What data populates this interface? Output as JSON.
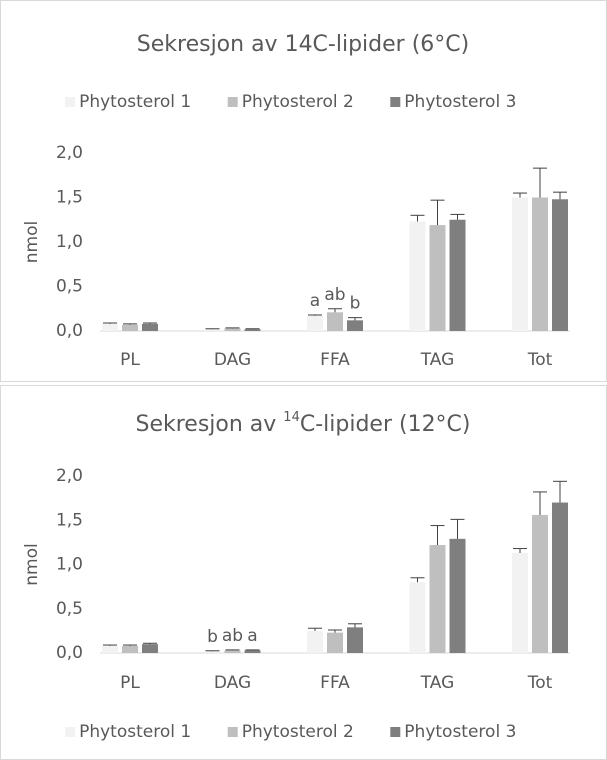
{
  "chart_data": [
    {
      "type": "bar",
      "title": [
        "Sekresjon av 14C-lipider (6°C)"
      ],
      "y_label": "nmol",
      "legend": "top",
      "grid": false,
      "categories": [
        "PL",
        "DAG",
        "FFA",
        "TAG",
        "Tot"
      ],
      "series": [
        {
          "name": "Phytosterol 1",
          "color": "#f2f2f2",
          "values": [
            0.08,
            0.02,
            0.17,
            1.23,
            1.5
          ],
          "errors": [
            0.01,
            0.005,
            0.01,
            0.07,
            0.05
          ]
        },
        {
          "name": "Phytosterol 2",
          "color": "#bfbfbf",
          "values": [
            0.07,
            0.03,
            0.21,
            1.19,
            1.5
          ],
          "errors": [
            0.01,
            0.005,
            0.04,
            0.28,
            0.33
          ]
        },
        {
          "name": "Phytosterol 3",
          "color": "#7f7f7f",
          "values": [
            0.08,
            0.02,
            0.12,
            1.25,
            1.48
          ],
          "errors": [
            0.01,
            0.005,
            0.03,
            0.06,
            0.08
          ]
        }
      ],
      "ylim": [
        0,
        2
      ],
      "yticks": [
        {
          "value": 0,
          "label": "0,0"
        },
        {
          "value": 0.5,
          "label": "0,5"
        },
        {
          "value": 1,
          "label": "1,0"
        },
        {
          "value": 1.5,
          "label": "1,5"
        },
        {
          "value": 2,
          "label": "2,0"
        }
      ],
      "annotations": [
        {
          "text": "a",
          "category": "FFA",
          "series": "Phytosterol 1"
        },
        {
          "text": "ab",
          "category": "FFA",
          "series": "Phytosterol 2"
        },
        {
          "text": "b",
          "category": "FFA",
          "series": "Phytosterol 3"
        }
      ]
    },
    {
      "type": "bar",
      "title": [
        "Sekresjon av ",
        "14",
        "C-lipider (12°C)"
      ],
      "y_label": "nmol",
      "legend": "bottom",
      "grid": false,
      "categories": [
        "PL",
        "DAG",
        "FFA",
        "TAG",
        "Tot"
      ],
      "series": [
        {
          "name": "Phytosterol 1",
          "color": "#f2f2f2",
          "values": [
            0.08,
            0.02,
            0.25,
            0.8,
            1.13
          ],
          "errors": [
            0.01,
            0.005,
            0.03,
            0.05,
            0.05
          ]
        },
        {
          "name": "Phytosterol 2",
          "color": "#bfbfbf",
          "values": [
            0.08,
            0.03,
            0.23,
            1.22,
            1.56
          ],
          "errors": [
            0.01,
            0.005,
            0.03,
            0.22,
            0.26
          ]
        },
        {
          "name": "Phytosterol 3",
          "color": "#7f7f7f",
          "values": [
            0.1,
            0.03,
            0.29,
            1.29,
            1.7
          ],
          "errors": [
            0.01,
            0.005,
            0.04,
            0.22,
            0.24
          ]
        }
      ],
      "ylim": [
        0,
        2
      ],
      "yticks": [
        {
          "value": 0,
          "label": "0,0"
        },
        {
          "value": 0.5,
          "label": "0,5"
        },
        {
          "value": 1,
          "label": "1,0"
        },
        {
          "value": 1.5,
          "label": "1,5"
        },
        {
          "value": 2,
          "label": "2,0"
        }
      ],
      "annotations": [
        {
          "text": "b",
          "category": "DAG",
          "series": "Phytosterol 1"
        },
        {
          "text": "ab",
          "category": "DAG",
          "series": "Phytosterol 2"
        },
        {
          "text": "a",
          "category": "DAG",
          "series": "Phytosterol 3"
        }
      ]
    }
  ]
}
